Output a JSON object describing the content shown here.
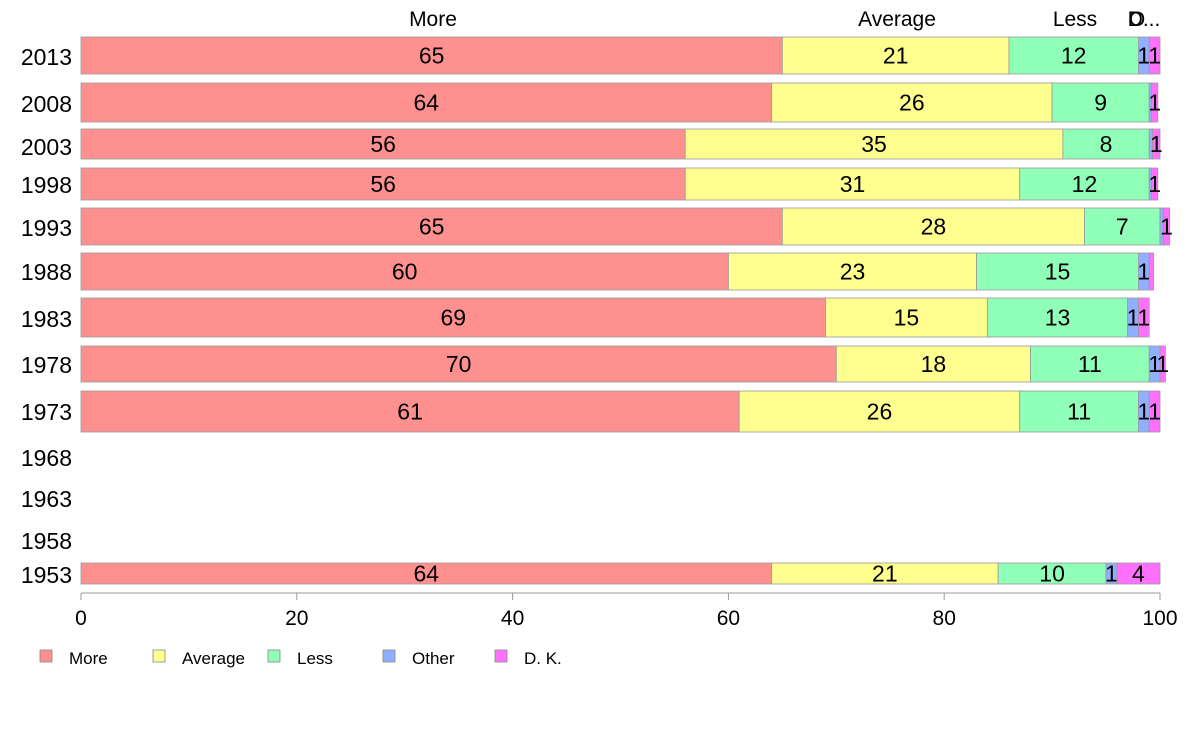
{
  "chart_data": {
    "type": "bar",
    "orientation": "horizontal",
    "stacked": true,
    "categories": [
      "2013",
      "2008",
      "2003",
      "1998",
      "1993",
      "1988",
      "1983",
      "1978",
      "1973",
      "1968",
      "1963",
      "1958",
      "1953"
    ],
    "series": [
      {
        "name": "More",
        "color": "#ff9090",
        "values": [
          65,
          64,
          56,
          56,
          65,
          60,
          69,
          70,
          61,
          null,
          null,
          null,
          64
        ]
      },
      {
        "name": "Average",
        "color": "#ffff90",
        "values": [
          21,
          26,
          35,
          31,
          28,
          23,
          15,
          18,
          26,
          null,
          null,
          null,
          21
        ]
      },
      {
        "name": "Less",
        "color": "#90ffb8",
        "values": [
          12,
          9,
          8,
          12,
          7,
          15,
          13,
          11,
          11,
          null,
          null,
          null,
          10
        ]
      },
      {
        "name": "Other",
        "color": "#90b0ff",
        "values": [
          1,
          0.2,
          0.3,
          0.2,
          0.3,
          1,
          1,
          1,
          1,
          null,
          null,
          null,
          1
        ]
      },
      {
        "name": "D. K.",
        "color": "#ff70ff",
        "values": [
          1,
          0.6,
          0.7,
          0.6,
          0.6,
          0.4,
          1,
          0.5,
          1,
          null,
          null,
          null,
          4
        ]
      }
    ],
    "bar_labels": [
      [
        "65",
        "21",
        "12",
        "1",
        "1"
      ],
      [
        "64",
        "26",
        "9",
        "",
        "1"
      ],
      [
        "56",
        "35",
        "8",
        "",
        "1"
      ],
      [
        "56",
        "31",
        "12",
        "",
        "1"
      ],
      [
        "65",
        "28",
        "7",
        "",
        "1"
      ],
      [
        "60",
        "23",
        "15",
        "1",
        ""
      ],
      [
        "69",
        "15",
        "13",
        "1",
        "1"
      ],
      [
        "70",
        "18",
        "11",
        "1",
        "1"
      ],
      [
        "61",
        "26",
        "11",
        "1",
        "1"
      ],
      [],
      [],
      [],
      [
        "64",
        "21",
        "10",
        "1",
        "4"
      ]
    ],
    "top_labels": [
      "More",
      "Average",
      "Less",
      "O",
      "D..."
    ],
    "xlim": [
      0,
      100
    ],
    "xticks": [
      "0",
      "20",
      "40",
      "60",
      "80",
      "100"
    ],
    "legend": [
      "More",
      "Average",
      "Less",
      "Other",
      "D. K."
    ],
    "legend_position": "bottom-left",
    "grid": false
  }
}
